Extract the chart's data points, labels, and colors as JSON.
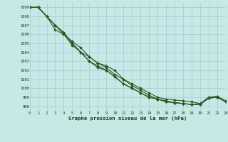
{
  "title": "Graphe pression niveau de la mer (hPa)",
  "background_color": "#c8e8e8",
  "grid_color": "#a8d0d0",
  "line_color": "#2d5a1e",
  "xlim": [
    0,
    23
  ],
  "ylim": [
    997.5,
    1009.5
  ],
  "xticks": [
    0,
    1,
    2,
    3,
    4,
    5,
    6,
    7,
    8,
    9,
    10,
    11,
    12,
    13,
    14,
    15,
    16,
    17,
    18,
    19,
    20,
    21,
    22,
    23
  ],
  "yticks": [
    998,
    999,
    1000,
    1001,
    1002,
    1003,
    1004,
    1005,
    1006,
    1007,
    1008,
    1009
  ],
  "lines": [
    {
      "x": [
        0,
        1,
        2,
        3,
        4,
        5,
        6,
        7,
        8,
        9,
        10,
        11,
        12,
        13,
        14,
        15,
        16,
        17,
        18,
        19,
        20,
        21,
        22,
        23
      ],
      "y": [
        1009,
        1009,
        1008,
        1007,
        1006.2,
        1005,
        1004,
        1003.5,
        1002.8,
        1002.5,
        1002.0,
        1001.0,
        1000.5,
        1000.0,
        999.5,
        999.0,
        998.8,
        998.7,
        998.6,
        998.5,
        998.3,
        999.0,
        999.1,
        998.6
      ]
    },
    {
      "x": [
        0,
        1,
        2,
        3,
        4,
        5,
        6,
        7,
        8,
        9,
        10,
        11,
        12,
        13,
        14,
        15,
        16,
        17,
        18,
        19,
        20,
        21,
        22,
        23
      ],
      "y": [
        1009,
        1009,
        1008,
        1006.5,
        1006.0,
        1005.2,
        1004.5,
        1003.5,
        1002.8,
        1002.3,
        1001.5,
        1001.0,
        1000.3,
        999.8,
        999.2,
        998.8,
        998.6,
        998.4,
        998.3,
        998.2,
        998.3,
        998.9,
        999.1,
        998.5
      ]
    },
    {
      "x": [
        0,
        1,
        2,
        3,
        4,
        5,
        6,
        7,
        8,
        9,
        10,
        11,
        12,
        13,
        14,
        15,
        16,
        17,
        18,
        19,
        20,
        21,
        22,
        23
      ],
      "y": [
        1009,
        1009,
        1008,
        1007,
        1006.0,
        1004.8,
        1004.0,
        1003.0,
        1002.3,
        1002.0,
        1001.3,
        1000.5,
        1000.0,
        999.5,
        999.0,
        998.8,
        998.5,
        998.4,
        998.3,
        998.2,
        998.2,
        998.9,
        999.0,
        998.5
      ]
    },
    {
      "x": [
        0,
        1,
        3,
        4,
        5,
        7,
        8,
        9,
        11,
        12,
        13,
        14,
        15,
        16,
        17,
        18,
        19,
        20,
        21,
        22,
        23
      ],
      "y": [
        1009,
        1009,
        1007,
        1006.2,
        1005,
        1003.0,
        1002.5,
        1002.0,
        1000.5,
        1000.0,
        999.5,
        999.0,
        998.8,
        998.5,
        998.4,
        998.3,
        998.2,
        998.2,
        998.9,
        999.0,
        998.5
      ]
    }
  ]
}
